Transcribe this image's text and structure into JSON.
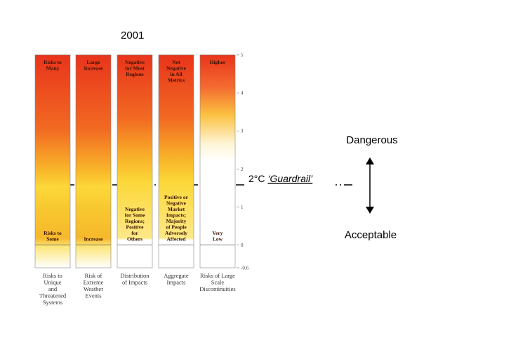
{
  "year": "2001",
  "columns": [
    {
      "top": [
        "Risks to",
        "Many"
      ],
      "bottom": [
        "Risks to",
        "Some"
      ],
      "caption": [
        "Risks to",
        "Unique",
        "and",
        "Threatened",
        "Systems"
      ]
    },
    {
      "top": [
        "Large",
        "Increase"
      ],
      "bottom": [
        "Increase"
      ],
      "caption": [
        "Risk of",
        "Extreme",
        "Weather",
        "Events"
      ]
    },
    {
      "top": [
        "Negative",
        "for Most",
        "Regions"
      ],
      "bottom": [
        "Negative",
        "for Some",
        "Regions;",
        "Positive",
        "for",
        "Others"
      ],
      "caption": [
        "Distribution",
        "of Impacts"
      ]
    },
    {
      "top": [
        "Net",
        "Negative",
        "in All",
        "Metrics"
      ],
      "bottom": [
        "Positive or",
        "Negative",
        "Market",
        "Impacts;",
        "Majority",
        "of People",
        "Adversely",
        "Affected"
      ],
      "caption": [
        "Aggregate",
        "Impacts"
      ]
    },
    {
      "top": [
        "Higher"
      ],
      "bottom": [
        "Very",
        "Low"
      ],
      "caption": [
        "Risks of Large",
        "Scale",
        "Discontinuities"
      ]
    }
  ],
  "axis": {
    "ylim": [
      -0.6,
      5
    ],
    "yticks": [
      5,
      4,
      3,
      2,
      1,
      0,
      -0.6
    ]
  },
  "guardrail": {
    "prefix": "2°C",
    "name": "‘Guardrail’"
  },
  "dangerous": "Dangerous",
  "acceptable": "Acceptable"
}
